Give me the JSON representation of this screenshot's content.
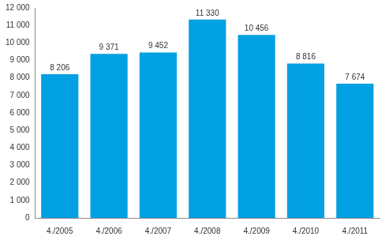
{
  "chart_data": {
    "type": "bar",
    "categories": [
      "4./2005",
      "4./2006",
      "4./2007",
      "4./2008",
      "4./2009",
      "4./2010",
      "4./2011"
    ],
    "values": [
      8206,
      9371,
      9452,
      11330,
      10456,
      8816,
      7674
    ],
    "value_labels": [
      "8 206",
      "9 371",
      "9 452",
      "11 330",
      "10 456",
      "8 816",
      "7 674"
    ],
    "data_labels": true,
    "color": "#00a0e2",
    "ylim": [
      0,
      12000
    ],
    "yticks": [
      0,
      {
        "value": 1000,
        "label": "1 000"
      },
      {
        "value": 2000,
        "label": "2 000"
      },
      {
        "value": 3000,
        "label": "3 000"
      },
      {
        "value": 4000,
        "label": "4 000"
      },
      {
        "value": 5000,
        "label": "5 000"
      },
      {
        "value": 6000,
        "label": "6 000"
      },
      {
        "value": 7000,
        "label": "7 000"
      },
      {
        "value": 8000,
        "label": "8 000"
      },
      {
        "value": 9000,
        "label": "9 000"
      },
      {
        "value": 10000,
        "label": "10 000"
      },
      {
        "value": 11000,
        "label": "11 000"
      },
      {
        "value": 12000,
        "label": "12 000"
      }
    ],
    "grid": false
  }
}
